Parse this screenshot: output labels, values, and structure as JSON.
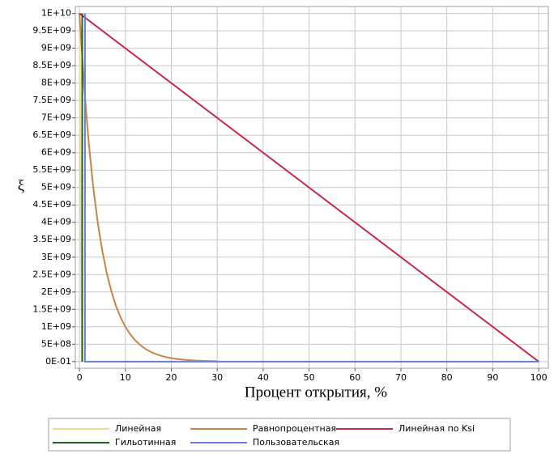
{
  "chart_data": {
    "type": "line",
    "x_label": "Процент открытия, %",
    "y_label": "ξ",
    "xlim": [
      -0.9,
      102.1
    ],
    "ylim": [
      -190000000,
      10200000000
    ],
    "xticks": [
      0,
      10,
      20,
      30,
      40,
      50,
      60,
      70,
      80,
      90,
      100
    ],
    "yticks": [
      {
        "value": 0,
        "label": "0E-01"
      },
      {
        "value": 500000000,
        "label": "5E+08"
      },
      {
        "value": 1000000000,
        "label": "1E+09"
      },
      {
        "value": 1500000000,
        "label": "1.5E+09"
      },
      {
        "value": 2000000000,
        "label": "2E+09"
      },
      {
        "value": 2500000000,
        "label": "2.5E+09"
      },
      {
        "value": 3000000000,
        "label": "3E+09"
      },
      {
        "value": 3500000000,
        "label": "3.5E+09"
      },
      {
        "value": 4000000000,
        "label": "4E+09"
      },
      {
        "value": 4500000000,
        "label": "4.5E+09"
      },
      {
        "value": 5000000000,
        "label": "5E+09"
      },
      {
        "value": 5500000000,
        "label": "5.5E+09"
      },
      {
        "value": 6000000000,
        "label": "6E+09"
      },
      {
        "value": 6500000000,
        "label": "6.5E+09"
      },
      {
        "value": 7000000000,
        "label": "7E+09"
      },
      {
        "value": 7500000000,
        "label": "7.5E+09"
      },
      {
        "value": 8000000000,
        "label": "8E+09"
      },
      {
        "value": 8500000000,
        "label": "8.5E+09"
      },
      {
        "value": 9000000000,
        "label": "9E+09"
      },
      {
        "value": 9500000000,
        "label": "9.5E+09"
      },
      {
        "value": 10000000000,
        "label": "1E+10"
      }
    ],
    "grid": true,
    "legend": "bottom",
    "series": [
      {
        "name": "Линейная",
        "color": "#f0dc8c",
        "x": [
          0,
          0.5
        ],
        "values": [
          10000000000,
          0
        ]
      },
      {
        "name": "Равнопроцентная",
        "color": "#c8844a",
        "x": [
          0,
          1,
          2,
          3,
          4,
          5,
          6,
          7,
          8,
          9,
          10,
          11,
          12,
          13,
          14,
          15,
          16,
          17,
          18,
          19,
          20,
          21,
          22,
          23,
          24,
          25,
          26,
          27,
          28,
          29,
          30
        ],
        "values": [
          10000000000,
          7940000000,
          6310000000,
          5010000000,
          3980000000,
          3160000000,
          2510000000,
          2000000000,
          1580000000,
          1260000000,
          1000000000,
          794000000,
          631000000,
          501000000,
          398000000,
          316000000,
          251000000,
          200000000,
          158000000,
          126000000,
          100000000,
          79400000,
          63100000,
          50100000,
          39800000,
          31600000,
          25100000,
          20000000,
          15800000,
          12600000,
          10000000
        ]
      },
      {
        "name": "Линейная по Ksi",
        "color": "#c8284a",
        "x": [
          0,
          100
        ],
        "values": [
          10000000000,
          0
        ]
      },
      {
        "name": "Гильотинная",
        "color": "#1e641e",
        "x": [
          0.6,
          0.6
        ],
        "values": [
          10000000000,
          0
        ]
      },
      {
        "name": "Пользовательская",
        "color": "#6a80d4",
        "x": [
          1.2,
          1.2,
          100
        ],
        "values": [
          10000000000,
          0,
          0
        ]
      }
    ]
  }
}
